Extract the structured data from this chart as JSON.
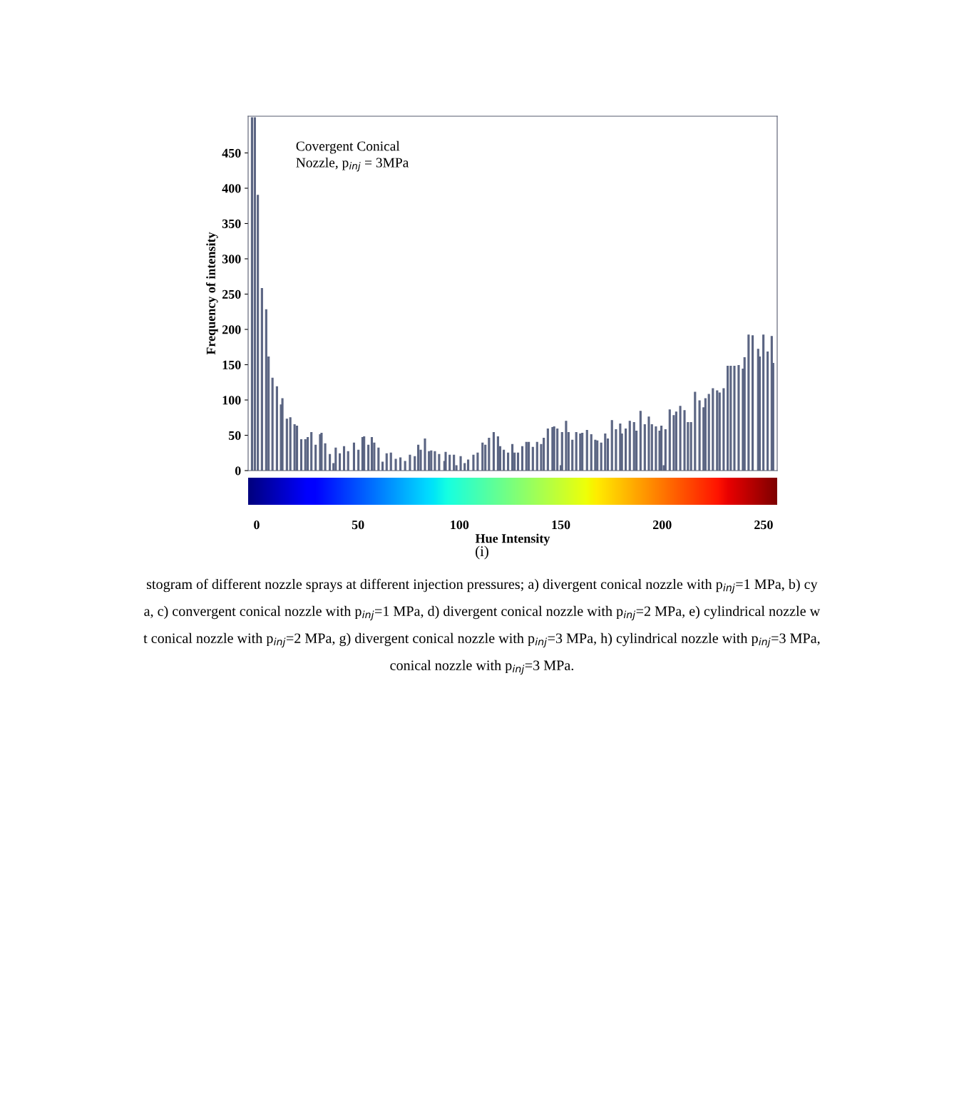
{
  "chart_data": {
    "type": "bar",
    "xlabel": "Hue Intensity",
    "ylabel": "Frequency of intensity",
    "x": [
      -2.3,
      -0.9,
      0.6,
      2.6,
      4.7,
      5.9,
      7.8,
      10,
      12,
      12.7,
      14.9,
      16.6,
      18.7,
      19.9,
      22,
      24,
      25.2,
      27,
      29.1,
      31.3,
      32,
      33.8,
      36.1,
      37.9,
      39,
      41,
      43.1,
      45.1,
      48,
      50.2,
      52.2,
      53,
      55.1,
      56.8,
      58,
      60.1,
      62.1,
      64.1,
      66.2,
      68.6,
      70.9,
      73.2,
      75.6,
      78,
      79.7,
      80.9,
      83,
      85,
      86.1,
      87.9,
      90,
      92.6,
      93.2,
      95.2,
      97.3,
      98.5,
      100.6,
      102.6,
      104.3,
      106.9,
      109,
      111.4,
      112.8,
      114.6,
      116.9,
      119,
      120.1,
      121.9,
      124,
      126.1,
      127.2,
      128.9,
      131,
      133,
      134.2,
      136.2,
      138.3,
      140.3,
      141.6,
      143.6,
      145.9,
      146.7,
      148.3,
      150,
      150.6,
      152.6,
      153.8,
      155.7,
      157.6,
      159.6,
      160.6,
      162.9,
      165,
      167,
      168,
      169.9,
      171.9,
      173.2,
      175.2,
      177.2,
      179.3,
      180.1,
      182,
      184,
      186.1,
      187.3,
      189.3,
      191.4,
      193.4,
      194.9,
      196.9,
      198.7,
      199.6,
      200.8,
      201.6,
      203.7,
      205.7,
      206.9,
      208.9,
      211,
      212.7,
      214.2,
      216.2,
      218.4,
      220.4,
      221.3,
      223,
      225,
      227.1,
      228.3,
      230.3,
      232.3,
      233.8,
      235.6,
      237.7,
      239.8,
      240.6,
      242.6,
      244.6,
      247.3,
      248.1,
      249.9,
      252,
      254,
      254.7
    ],
    "values": [
      500,
      500,
      390,
      258,
      228,
      161,
      131,
      119,
      93,
      102,
      73,
      75,
      65,
      63,
      44,
      44,
      47,
      54,
      36,
      51,
      53,
      38,
      23,
      10,
      32,
      24,
      34,
      27,
      39,
      29,
      47,
      48,
      36,
      47,
      39,
      32,
      12,
      24,
      25,
      16,
      18,
      13,
      22,
      20,
      36,
      29,
      45,
      27,
      28,
      27,
      23,
      13,
      26,
      22,
      22,
      7,
      20,
      10,
      15,
      22,
      25,
      39,
      36,
      46,
      54,
      48,
      34,
      29,
      25,
      37,
      25,
      25,
      34,
      40,
      40,
      33,
      40,
      37,
      46,
      59,
      61,
      62,
      59,
      7,
      54,
      70,
      54,
      43,
      54,
      52,
      53,
      57,
      51,
      43,
      42,
      39,
      52,
      45,
      71,
      58,
      66,
      52,
      59,
      70,
      68,
      56,
      84,
      65,
      76,
      65,
      62,
      56,
      63,
      7,
      58,
      86,
      78,
      83,
      91,
      85,
      68,
      68,
      111,
      99,
      89,
      102,
      108,
      116,
      113,
      110,
      116,
      148,
      148,
      148,
      149,
      144,
      160,
      192,
      191,
      172,
      161,
      192,
      168,
      190,
      152
    ],
    "color": "#5a6482",
    "xlim": [
      -4.2,
      256.7
    ],
    "ylim": [
      0,
      502
    ],
    "xticks": [
      0,
      50,
      100,
      150,
      200,
      250
    ],
    "yticks": [
      0,
      50,
      100,
      150,
      200,
      250,
      300,
      350,
      400,
      450
    ],
    "grid": false,
    "annotations": [
      "Covergent Conical\nNozzle, p$_{inj}$ = 3MPa",
      "(i)",
      "stogram of different nozzle sprays at different injection pressures; a) divergent conical nozzle with p$_{inj}$=1 MPa, b) cy",
      "a, c) convergent conical nozzle with p$_{inj}$=1 MPa, d) divergent conical nozzle with p$_{inj}$=2 MPa, e) cylindrical nozzle w",
      "t conical nozzle with p$_{inj}$=2 MPa, g) divergent conical nozzle with p$_{inj}$=3 MPa, h) cylindrical nozzle with p$_{inj}$=3 MPa,",
      "conical nozzle with p$_{inj}$=3 MPa."
    ]
  }
}
